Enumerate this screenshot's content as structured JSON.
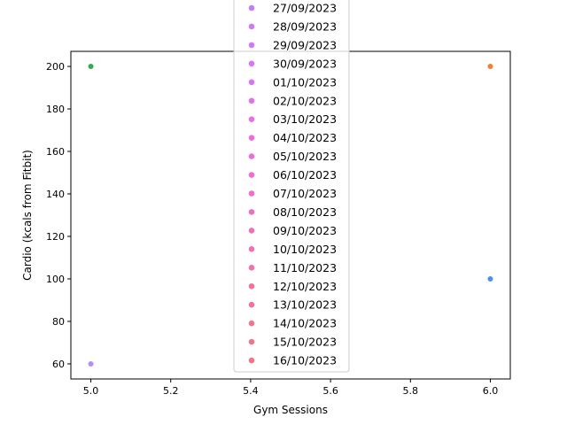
{
  "chart_data": {
    "type": "scatter",
    "xlabel": "Gym Sessions",
    "ylabel": "Cardio (kcals from Fitbit)",
    "xlim": [
      4.95,
      6.05
    ],
    "ylim": [
      52.9,
      207.1
    ],
    "xticks": [
      5.0,
      5.2,
      5.4,
      5.6,
      5.8,
      6.0
    ],
    "xtick_labels": [
      "5.0",
      "5.2",
      "5.4",
      "5.6",
      "5.8",
      "6.0"
    ],
    "yticks": [
      60,
      80,
      100,
      120,
      140,
      160,
      180,
      200
    ],
    "ytick_labels": [
      "60",
      "80",
      "100",
      "120",
      "140",
      "160",
      "180",
      "200"
    ],
    "grid": false,
    "legend_position": "top-center",
    "points": [
      {
        "x": 5.0,
        "y": 200,
        "color": "#39a750"
      },
      {
        "x": 5.0,
        "y": 60,
        "color": "#b38ef5"
      },
      {
        "x": 6.0,
        "y": 200,
        "color": "#ef7f33"
      },
      {
        "x": 6.0,
        "y": 100,
        "color": "#4c90ef"
      }
    ],
    "legend_entries": [
      {
        "label": "27/09/2023",
        "color": "#c47ff5"
      },
      {
        "label": "28/09/2023",
        "color": "#c97cf5"
      },
      {
        "label": "29/09/2023",
        "color": "#cf79f4"
      },
      {
        "label": "30/09/2023",
        "color": "#d676f3"
      },
      {
        "label": "01/10/2023",
        "color": "#dc72f1"
      },
      {
        "label": "02/10/2023",
        "color": "#e26fee"
      },
      {
        "label": "03/10/2023",
        "color": "#e86deb"
      },
      {
        "label": "04/10/2023",
        "color": "#ec6de3"
      },
      {
        "label": "05/10/2023",
        "color": "#ee6ddb"
      },
      {
        "label": "06/10/2023",
        "color": "#ef6dd3"
      },
      {
        "label": "07/10/2023",
        "color": "#f06ecb"
      },
      {
        "label": "08/10/2023",
        "color": "#f06ec3"
      },
      {
        "label": "09/10/2023",
        "color": "#f06fbb"
      },
      {
        "label": "10/10/2023",
        "color": "#f070b3"
      },
      {
        "label": "11/10/2023",
        "color": "#f071ab"
      },
      {
        "label": "12/10/2023",
        "color": "#f072a3"
      },
      {
        "label": "13/10/2023",
        "color": "#f0739b"
      },
      {
        "label": "14/10/2023",
        "color": "#f07493"
      },
      {
        "label": "15/10/2023",
        "color": "#f0758b"
      },
      {
        "label": "16/10/2023",
        "color": "#f07683"
      }
    ]
  }
}
